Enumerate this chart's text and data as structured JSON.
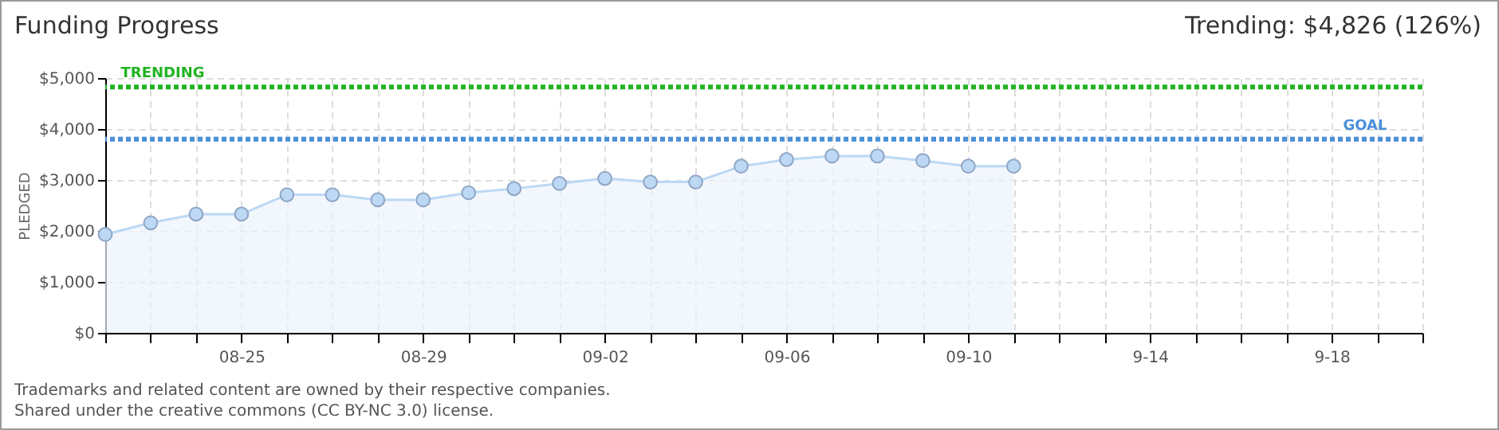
{
  "chart_data": {
    "type": "area",
    "title": "Funding Progress",
    "ylabel": "PLEDGED",
    "annotations": [
      "Trending: $4,826 (126%)",
      "Trademarks and related content are owned by their respective companies.",
      "Shared under the creative commons (CC BY-NC 3.0) license."
    ],
    "x": [
      "--08-22",
      "--08-23",
      "--08-24",
      "--08-25",
      "--08-26",
      "--08-27",
      "--08-28",
      "--08-29",
      "--08-30",
      "--08-31",
      "--09-01",
      "--09-02",
      "--09-03",
      "--09-04",
      "--09-05",
      "--09-06",
      "--09-07",
      "--09-08",
      "--09-09",
      "--09-10",
      "--09-11"
    ],
    "series": [
      {
        "color": "#bcd8f5",
        "values": [
          1930,
          2160,
          2330,
          2330,
          2710,
          2710,
          2610,
          2610,
          2750,
          2830,
          2930,
          3030,
          2960,
          2960,
          3270,
          3400,
          3470,
          3470,
          3380,
          3270,
          3270
        ]
      }
    ],
    "marker": "circle",
    "grid": true,
    "ylim": [
      0,
      5000
    ],
    "yticks": [
      {
        "value": 0,
        "label": "$0"
      },
      {
        "value": 1000,
        "label": "$1,000"
      },
      {
        "value": 2000,
        "label": "$2,000"
      },
      {
        "value": 3000,
        "label": "$3,000"
      },
      {
        "value": 4000,
        "label": "$4,000"
      },
      {
        "value": 5000,
        "label": "$5,000"
      }
    ],
    "xlim": [
      "--08-22",
      "--09-20"
    ],
    "xticks": [
      {
        "value": "--08-22",
        "label": null
      },
      {
        "value": "--08-23",
        "label": null
      },
      {
        "value": "--08-24",
        "label": null
      },
      {
        "value": "--08-25",
        "label": "08-25"
      },
      {
        "value": "--08-26",
        "label": null
      },
      {
        "value": "--08-27",
        "label": null
      },
      {
        "value": "--08-28",
        "label": null
      },
      {
        "value": "--08-29",
        "label": "08-29"
      },
      {
        "value": "--08-30",
        "label": null
      },
      {
        "value": "--08-31",
        "label": null
      },
      {
        "value": "--09-01",
        "label": null
      },
      {
        "value": "--09-02",
        "label": "09-02"
      },
      {
        "value": "--09-03",
        "label": null
      },
      {
        "value": "--09-04",
        "label": null
      },
      {
        "value": "--09-05",
        "label": null
      },
      {
        "value": "--09-06",
        "label": "09-06"
      },
      {
        "value": "--09-07",
        "label": null
      },
      {
        "value": "--09-08",
        "label": null
      },
      {
        "value": "--09-09",
        "label": null
      },
      {
        "value": "--09-10",
        "label": "09-10"
      },
      {
        "value": "--09-11",
        "label": null
      },
      {
        "value": "--09-12",
        "label": null
      },
      {
        "value": "--09-13",
        "label": null
      },
      {
        "value": "--09-14",
        "label": "9-14"
      },
      {
        "value": "--09-15",
        "label": null
      },
      {
        "value": "--09-16",
        "label": null
      },
      {
        "value": "--09-17",
        "label": null
      },
      {
        "value": "--09-18",
        "label": "9-18"
      },
      {
        "value": "--09-19",
        "label": null
      },
      {
        "value": "--09-20",
        "label": null
      }
    ],
    "ref_lines": [
      {
        "axis": "y",
        "value": 4826,
        "label": "TRENDING",
        "color": "#22b322",
        "line_style": "dotted"
      },
      {
        "axis": "y",
        "value": 3800,
        "label": "GOAL",
        "color": "#4a8fdb",
        "line_style": "dotted"
      }
    ]
  }
}
